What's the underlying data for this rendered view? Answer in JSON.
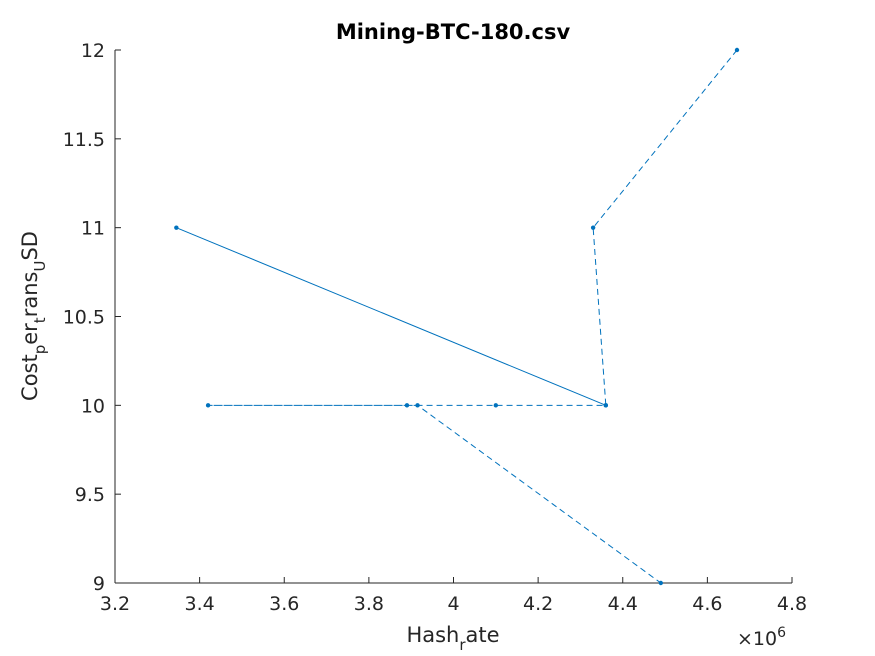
{
  "chart_data": {
    "type": "line",
    "title": "Mining-BTC-180.csv",
    "xlabel": {
      "base": "Hash",
      "sub": "r",
      "rest": "ate"
    },
    "ylabel": {
      "p1": "Cost",
      "s1": "p",
      "p2": "er",
      "s2": "t",
      "p3": "rans",
      "s3": "U",
      "p4": "SD"
    },
    "x_exponent": {
      "times": "×10",
      "power": "6"
    },
    "xlim": [
      3.2,
      4.8
    ],
    "ylim": [
      9,
      12
    ],
    "x_scale_factor": 1000000,
    "xticks": [
      "3.2",
      "3.4",
      "3.6",
      "3.8",
      "4",
      "4.2",
      "4.4",
      "4.6",
      "4.8"
    ],
    "yticks": [
      "9",
      "9.5",
      "10",
      "10.5",
      "11",
      "11.5",
      "12"
    ],
    "color": "#0072bd",
    "series": [
      {
        "line_style": "solid",
        "x": [
          3.345,
          4.36
        ],
        "y": [
          11,
          10
        ]
      },
      {
        "line_style": "dashed",
        "x": [
          4.67,
          4.33,
          4.36,
          4.1,
          3.42,
          3.89,
          3.915,
          4.49
        ],
        "y": [
          12,
          11,
          10,
          10,
          10,
          10,
          10,
          9
        ]
      }
    ]
  }
}
